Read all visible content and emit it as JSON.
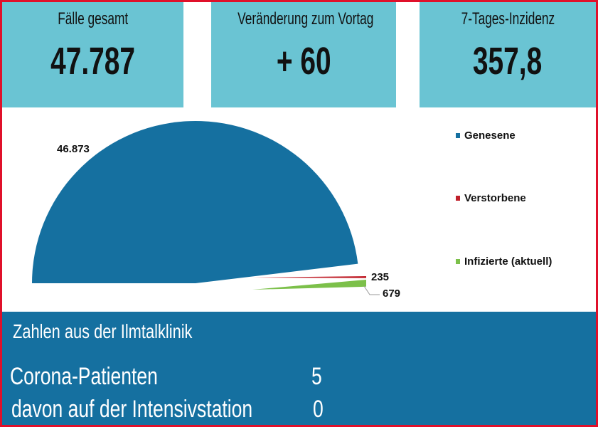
{
  "tiles": [
    {
      "label": "Fälle gesamt",
      "value": "47.787"
    },
    {
      "label": "Veränderung zum Vortag",
      "value": "+ 60"
    },
    {
      "label": "7-Tages-Inzidenz",
      "value": "357,8"
    }
  ],
  "chart_data": {
    "type": "pie",
    "legend_position": "right",
    "slices": [
      {
        "name": "Genesene",
        "value": 46873,
        "label": "46.873",
        "color": "#1570a0"
      },
      {
        "name": "Verstorbene",
        "value": 235,
        "label": "235",
        "color": "#c0202a"
      },
      {
        "name": "Infizierte (aktuell)",
        "value": 679,
        "label": "679",
        "color": "#7cc04a"
      }
    ]
  },
  "klinik": {
    "title": "Zahlen aus der Ilmtalklinik",
    "rows": [
      {
        "label": "Corona-Patienten",
        "value": "5"
      },
      {
        "label": "davon auf der Intensivstation",
        "value": "0"
      }
    ]
  },
  "colors": {
    "tile": "#6ac4d3",
    "band": "#1570a0",
    "border": "#e0102a"
  }
}
